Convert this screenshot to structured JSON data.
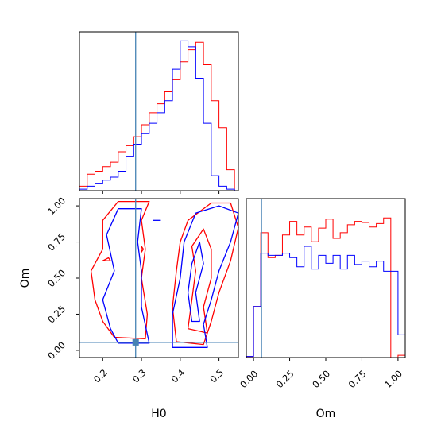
{
  "chart_data": {
    "type": "corner",
    "parameters": [
      "H0",
      "Om"
    ],
    "truths": {
      "H0": 0.285,
      "Om": 0.055
    },
    "colors": {
      "red": "#ff0000",
      "blue": "#0000ff",
      "truth": "#4682b4"
    },
    "panels": {
      "h0_hist": {
        "type": "histogram",
        "xlim": [
          0.14,
          0.55
        ],
        "ylim": [
          0,
          1.06
        ],
        "bins": [
          0.14,
          0.16,
          0.18,
          0.2,
          0.22,
          0.24,
          0.26,
          0.28,
          0.3,
          0.32,
          0.34,
          0.36,
          0.38,
          0.4,
          0.42,
          0.44,
          0.46,
          0.48,
          0.5,
          0.52,
          0.54
        ],
        "series": [
          {
            "color": "red",
            "values": [
              0.03,
              0.11,
              0.13,
              0.16,
              0.19,
              0.26,
              0.3,
              0.36,
              0.44,
              0.52,
              0.58,
              0.66,
              0.74,
              0.86,
              0.94,
              0.99,
              0.84,
              0.6,
              0.42,
              0.14
            ]
          },
          {
            "color": "blue",
            "values": [
              0.01,
              0.03,
              0.05,
              0.07,
              0.09,
              0.13,
              0.23,
              0.31,
              0.38,
              0.45,
              0.52,
              0.6,
              0.81,
              1.0,
              0.96,
              0.75,
              0.45,
              0.1,
              0.03,
              0.01
            ]
          }
        ]
      },
      "om_hist": {
        "type": "histogram",
        "xlim": [
          -0.05,
          1.05
        ],
        "ylim": [
          0,
          1.4
        ],
        "bins": [
          -0.05,
          0.0,
          0.05,
          0.1,
          0.15,
          0.2,
          0.25,
          0.3,
          0.35,
          0.4,
          0.45,
          0.5,
          0.55,
          0.6,
          0.65,
          0.7,
          0.75,
          0.8,
          0.85,
          0.9,
          0.95,
          1.0,
          1.05
        ],
        "series": [
          {
            "color": "red",
            "values": [
              0.01,
              0.45,
              1.1,
              0.88,
              0.9,
              1.08,
              1.2,
              1.08,
              1.15,
              1.02,
              1.14,
              1.22,
              1.05,
              1.1,
              1.17,
              1.2,
              1.19,
              1.15,
              1.18,
              1.23,
              0.0,
              0.02
            ]
          },
          {
            "color": "blue",
            "values": [
              0.01,
              0.45,
              0.92,
              0.9,
              0.9,
              0.92,
              0.88,
              0.8,
              0.98,
              0.78,
              0.9,
              0.83,
              0.9,
              0.78,
              0.9,
              0.82,
              0.85,
              0.8,
              0.85,
              0.76,
              0.76,
              0.2
            ]
          }
        ]
      },
      "contour": {
        "type": "contour",
        "xlim": [
          0.14,
          0.55
        ],
        "ylim": [
          -0.05,
          1.05
        ],
        "series": [
          {
            "color": "red",
            "contours": [
              [
                [
                  0.23,
                  0.09
                ],
                [
                  0.31,
                  0.08
                ],
                [
                  0.315,
                  0.25
                ],
                [
                  0.3,
                  0.5
                ],
                [
                  0.31,
                  0.7
                ],
                [
                  0.3,
                  0.9
                ],
                [
                  0.32,
                  1.03
                ],
                [
                  0.24,
                  1.03
                ],
                [
                  0.2,
                  0.9
                ],
                [
                  0.2,
                  0.7
                ],
                [
                  0.17,
                  0.55
                ],
                [
                  0.18,
                  0.35
                ],
                [
                  0.2,
                  0.2
                ]
              ],
              [
                [
                  0.39,
                  0.06
                ],
                [
                  0.46,
                  0.04
                ],
                [
                  0.48,
                  0.2
                ],
                [
                  0.5,
                  0.4
                ],
                [
                  0.53,
                  0.62
                ],
                [
                  0.55,
                  0.85
                ],
                [
                  0.53,
                  1.02
                ],
                [
                  0.48,
                  1.02
                ],
                [
                  0.42,
                  0.9
                ],
                [
                  0.4,
                  0.75
                ],
                [
                  0.39,
                  0.55
                ],
                [
                  0.38,
                  0.3
                ]
              ],
              [
                [
                  0.42,
                  0.15
                ],
                [
                  0.47,
                  0.12
                ],
                [
                  0.46,
                  0.3
                ],
                [
                  0.48,
                  0.5
                ],
                [
                  0.48,
                  0.7
                ],
                [
                  0.46,
                  0.84
                ],
                [
                  0.43,
                  0.72
                ],
                [
                  0.44,
                  0.55
                ],
                [
                  0.43,
                  0.35
                ]
              ],
              [
                [
                  0.2,
                  0.62
                ],
                [
                  0.22,
                  0.62
                ],
                [
                  0.215,
                  0.64
                ]
              ],
              [
                [
                  0.3,
                  0.68
                ],
                [
                  0.305,
                  0.7
                ],
                [
                  0.3,
                  0.72
                ]
              ]
            ]
          },
          {
            "color": "blue",
            "contours": [
              [
                [
                  0.24,
                  0.05
                ],
                [
                  0.32,
                  0.05
                ],
                [
                  0.3,
                  0.3
                ],
                [
                  0.3,
                  0.55
                ],
                [
                  0.29,
                  0.75
                ],
                [
                  0.3,
                  0.98
                ],
                [
                  0.24,
                  0.98
                ],
                [
                  0.21,
                  0.8
                ],
                [
                  0.23,
                  0.55
                ],
                [
                  0.2,
                  0.35
                ],
                [
                  0.22,
                  0.15
                ]
              ],
              [
                [
                  0.38,
                  0.02
                ],
                [
                  0.47,
                  0.02
                ],
                [
                  0.46,
                  0.18
                ],
                [
                  0.48,
                  0.35
                ],
                [
                  0.5,
                  0.55
                ],
                [
                  0.53,
                  0.75
                ],
                [
                  0.55,
                  0.95
                ],
                [
                  0.5,
                  1.0
                ],
                [
                  0.44,
                  0.95
                ],
                [
                  0.41,
                  0.75
                ],
                [
                  0.4,
                  0.5
                ],
                [
                  0.38,
                  0.25
                ]
              ],
              [
                [
                  0.43,
                  0.2
                ],
                [
                  0.45,
                  0.2
                ],
                [
                  0.44,
                  0.4
                ],
                [
                  0.46,
                  0.6
                ],
                [
                  0.45,
                  0.75
                ],
                [
                  0.43,
                  0.6
                ],
                [
                  0.42,
                  0.4
                ]
              ],
              [
                [
                  0.33,
                  0.9
                ],
                [
                  0.35,
                  0.9
                ]
              ]
            ]
          }
        ]
      }
    },
    "x_axis_contour": {
      "label": "H0",
      "ticks": [
        "0.2",
        "0.3",
        "0.4",
        "0.5"
      ],
      "tick_values": [
        0.2,
        0.3,
        0.4,
        0.5
      ]
    },
    "y_axis_contour": {
      "label": "Om",
      "ticks": [
        "0.00",
        "0.25",
        "0.50",
        "0.75",
        "1.00"
      ],
      "tick_values": [
        0.0,
        0.25,
        0.5,
        0.75,
        1.0
      ]
    },
    "x_axis_om": {
      "label": "Om",
      "ticks": [
        "0.00",
        "0.25",
        "0.50",
        "0.75",
        "1.00"
      ],
      "tick_values": [
        0.0,
        0.25,
        0.5,
        0.75,
        1.0
      ]
    },
    "x_axis_h0_hist_ticks": [
      0.2,
      0.3,
      0.4,
      0.5
    ]
  }
}
